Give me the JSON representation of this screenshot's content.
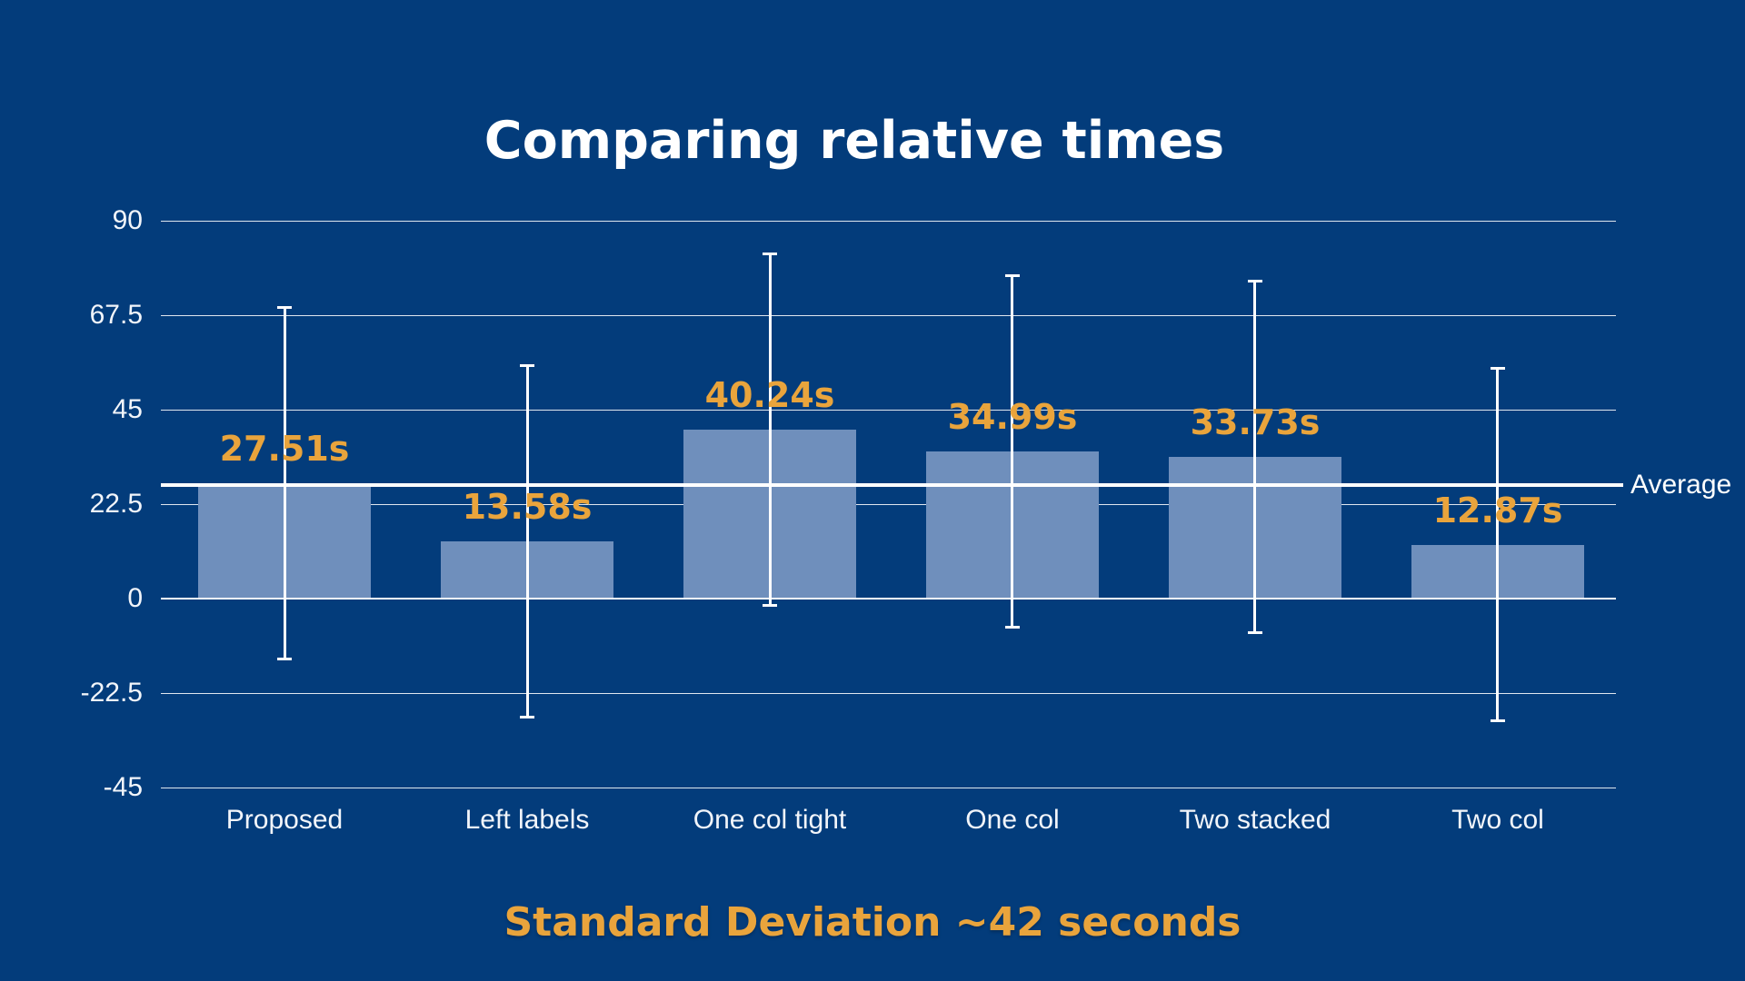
{
  "title": "Comparing relative times",
  "subtitle": "Standard Deviation ~42 seconds",
  "average_label": "Average",
  "colors": {
    "background": "#033c7b",
    "bar_fill": "#6f8fbc",
    "accent_orange": "#e9a43c",
    "line_white": "#ffffff"
  },
  "chart_data": {
    "type": "bar",
    "title": "Comparing relative times",
    "annotation": "Standard Deviation ~42 seconds",
    "categories": [
      "Proposed",
      "Left labels",
      "One col tight",
      "One col",
      "Two stacked",
      "Two col"
    ],
    "values": [
      27.51,
      13.58,
      40.24,
      34.99,
      33.73,
      12.87
    ],
    "value_labels": [
      "27.51s",
      "13.58s",
      "40.24s",
      "34.99s",
      "33.73s",
      "12.87s"
    ],
    "error_bar_seconds": 42,
    "average": 27.15,
    "average_line_label": "Average",
    "y_ticks": [
      90,
      67.5,
      45,
      22.5,
      0,
      -22.5,
      -45
    ],
    "y_tick_labels": [
      "90",
      "67.5",
      "45",
      "22.5",
      "0",
      "-22.5",
      "-45"
    ],
    "ylim": [
      -45,
      90
    ],
    "grid": true,
    "legend_position": "none",
    "units": "seconds"
  }
}
